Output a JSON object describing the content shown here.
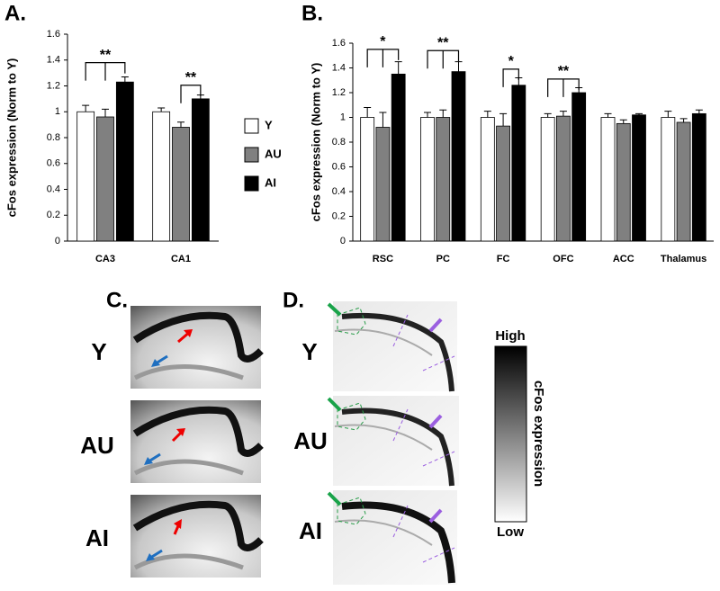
{
  "chart_data": [
    {
      "type": "bar",
      "panel": "A.",
      "y_label": "cFos expression (Norm to Y)",
      "categories": [
        "CA3",
        "CA1"
      ],
      "series": [
        {
          "name": "Y",
          "color": "#ffffff",
          "values": [
            1.0,
            1.0
          ],
          "errors": [
            0.05,
            0.03
          ]
        },
        {
          "name": "AU",
          "color": "#808080",
          "values": [
            0.96,
            0.88
          ],
          "errors": [
            0.06,
            0.04
          ]
        },
        {
          "name": "AI",
          "color": "#000000",
          "values": [
            1.23,
            1.1
          ],
          "errors": [
            0.04,
            0.03
          ]
        }
      ],
      "annotations": [
        "**",
        "**"
      ],
      "ylim": [
        0,
        1.6
      ],
      "yticks": [
        0,
        0.2,
        0.4,
        0.6,
        0.8,
        1,
        1.2,
        1.4,
        1.6
      ]
    },
    {
      "type": "bar",
      "panel": "B.",
      "y_label": "cFos expression (Norm to Y)",
      "categories": [
        "RSC",
        "PC",
        "FC",
        "OFC",
        "ACC",
        "Thalamus"
      ],
      "series": [
        {
          "color": "#ffffff",
          "values": [
            1.0,
            1.0,
            1.0,
            1.0,
            1.0,
            1.0
          ],
          "errors": [
            0.08,
            0.04,
            0.05,
            0.03,
            0.03,
            0.05
          ]
        },
        {
          "color": "#808080",
          "values": [
            0.92,
            1.0,
            0.93,
            1.01,
            0.95,
            0.96
          ],
          "errors": [
            0.12,
            0.06,
            0.1,
            0.04,
            0.03,
            0.03
          ]
        },
        {
          "color": "#000000",
          "values": [
            1.35,
            1.37,
            1.26,
            1.2,
            1.02,
            1.03
          ],
          "errors": [
            0.1,
            0.08,
            0.06,
            0.04,
            0.01,
            0.03
          ]
        }
      ],
      "annotations": [
        "*",
        "**",
        "*",
        "**"
      ],
      "ylim": [
        0,
        1.6
      ],
      "yticks": [
        0,
        0.2,
        0.4,
        0.6,
        0.8,
        1,
        1.2,
        1.4,
        1.6
      ]
    }
  ],
  "panel_c": {
    "label": "C.",
    "rows": [
      "Y",
      "AU",
      "AI"
    ]
  },
  "panel_d": {
    "label": "D.",
    "rows": [
      "Y",
      "AU",
      "AI"
    ]
  },
  "colorbar": {
    "high": "High",
    "low": "Low",
    "title": "cFos expression"
  }
}
